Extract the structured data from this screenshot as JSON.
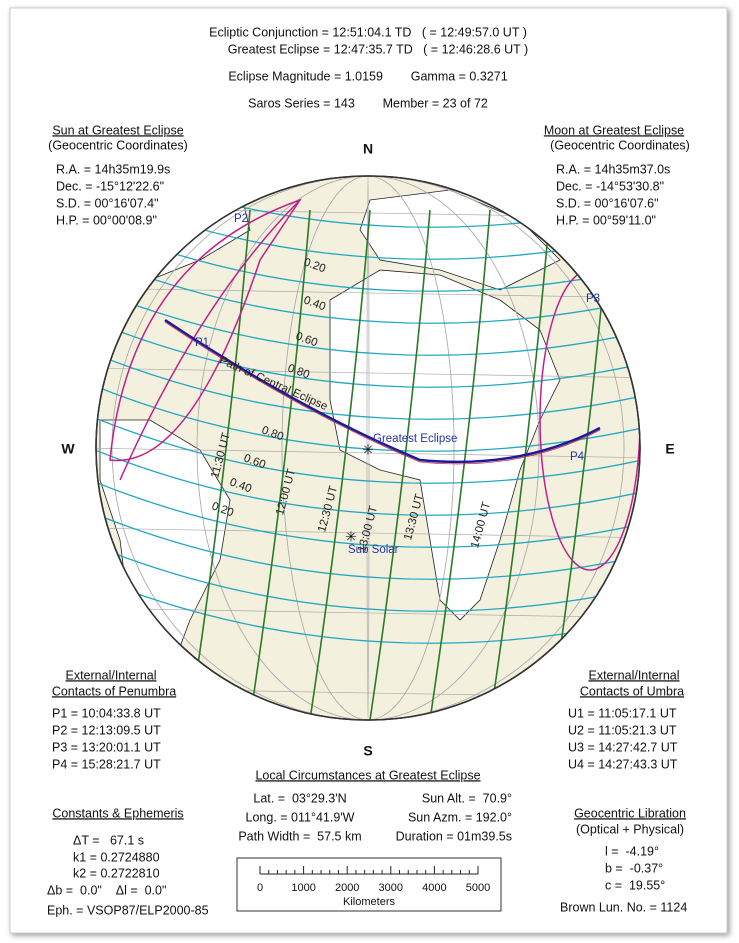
{
  "header": {
    "conjunction": "Ecliptic Conjunction = 12:51:04.1 TD   ( = 12:49:57.0 UT )",
    "greatest": "Greatest Eclipse = 12:47:35.7 TD   ( = 12:46:28.6 UT )",
    "magnitude": "Eclipse Magnitude = 1.0159        Gamma = 0.3271",
    "saros": "Saros Series = 143        Member = 23 of 72"
  },
  "sun": {
    "title": "Sun at Greatest Eclipse",
    "subtitle": "(Geocentric Coordinates)",
    "rows": [
      "R.A. = 14h35m19.9s",
      "Dec. = -15°12'22.6\"",
      "S.D. = 00°16'07.4\"",
      "H.P. = 00°00'08.9\""
    ]
  },
  "moon": {
    "title": "Moon at Greatest Eclipse",
    "subtitle": "(Geocentric Coordinates)",
    "rows": [
      "R.A. = 14h35m37.0s",
      "Dec. = -14°53'30.8\"",
      "S.D. = 00°16'07.6\"",
      "H.P. = 00°59'11.0\""
    ]
  },
  "penumbra": {
    "title": "External/Internal",
    "subtitle": "Contacts of Penumbra",
    "rows": [
      "P1 = 10:04:33.8 UT",
      "P2 = 12:13:09.5 UT",
      "P3 = 13:20:01.1 UT",
      "P4 = 15:28:21.7 UT"
    ]
  },
  "umbra": {
    "title": "External/Internal",
    "subtitle": "Contacts of Umbra",
    "rows": [
      "U1 = 11:05:17.1 UT",
      "U2 = 11:05:21.3 UT",
      "U3 = 14:27:42.7 UT",
      "U4 = 14:27:43.3 UT"
    ]
  },
  "local": {
    "title": "Local Circumstances at Greatest Eclipse",
    "rows": [
      [
        "Lat. =  03°29.3'N",
        "Sun Alt. =  70.9°"
      ],
      [
        "Long. = 011°41.9'W",
        "Sun Azm. = 192.0°"
      ],
      [
        "Path Width =  57.5 km",
        "Duration = 01m39.5s"
      ]
    ]
  },
  "constants": {
    "title": "Constants & Ephemeris",
    "rows": [
      "ΔT =   67.1 s",
      "k1 = 0.2724880",
      "k2 = 0.2722810",
      "Δb =  0.0\"    Δl =  0.0\"",
      "Eph. = VSOP87/ELP2000-85"
    ]
  },
  "libration": {
    "title": "Geocentric Libration",
    "subtitle": "(Optical + Physical)",
    "rows": [
      "l =  -4.19°",
      "b =  -0.37°",
      "c =  19.55°",
      "Brown Lun. No. = 1124"
    ]
  },
  "scale": {
    "ticks": [
      "0",
      "1000",
      "2000",
      "3000",
      "4000",
      "5000"
    ],
    "unit": "Kilometers"
  },
  "globe": {
    "north": "N",
    "south": "S",
    "west": "W",
    "east": "E",
    "contacts": [
      "P1",
      "P2",
      "P3",
      "P4"
    ],
    "path": "Path of Central Eclipse",
    "greatest": "Greatest Eclipse",
    "subsolar": "Sub Solar",
    "magnitudes_north": [
      "0.20",
      "0.40",
      "0.60",
      "0.80"
    ],
    "magnitudes_south": [
      "0.80",
      "0.60",
      "0.40",
      "0.20"
    ],
    "times": [
      "11:30 UT",
      "12:00 UT",
      "12:30 UT",
      "13:00 UT",
      "13:30 UT",
      "14:00 UT"
    ]
  }
}
